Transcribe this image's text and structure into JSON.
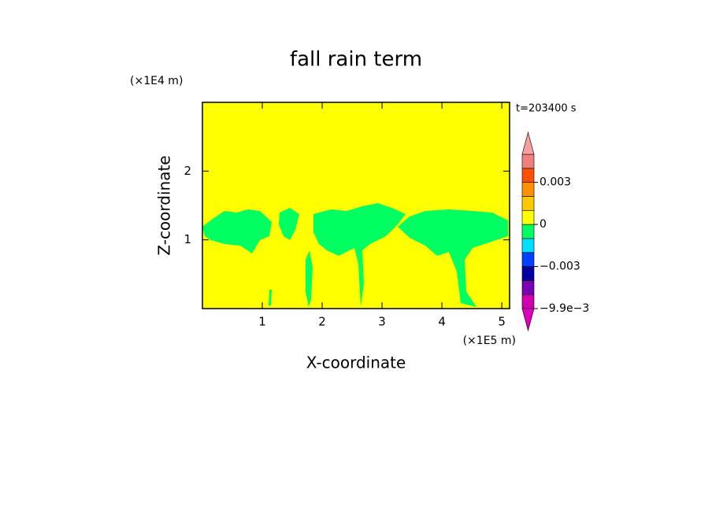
{
  "chart_data": {
    "type": "contour",
    "title": "fall rain term",
    "xlabel": "X-coordinate",
    "ylabel": "Z-coordinate",
    "xunit": "(×1E5 m)",
    "yunit": "(×1E4 m)",
    "annotation": "t=203400 s",
    "xlim": [
      0,
      5.13
    ],
    "ylim": [
      0,
      3
    ],
    "xticks": [
      1,
      2,
      3,
      4,
      5
    ],
    "yticks": [
      1,
      2
    ],
    "background_color": "#ffff00",
    "feature_color": "#00ff60",
    "colorbar": {
      "levels": [
        -0.0099,
        -0.006,
        -0.004,
        -0.003,
        -0.002,
        -0.001,
        0,
        0.001,
        0.002,
        0.003,
        0.004,
        0.006
      ],
      "colors": [
        "#d000b0",
        "#7a00b8",
        "#0000a0",
        "#0040ff",
        "#00e0ff",
        "#00ff60",
        "#ffff00",
        "#ffc800",
        "#ff9000",
        "#ff5000",
        "#f08080"
      ],
      "under_color": "#e000c0",
      "over_color": "#f8a0a0",
      "ticks": [
        {
          "value": 0.003,
          "label": "0.003"
        },
        0,
        {
          "value": -0.003,
          "label": "−0.003"
        },
        {
          "value": -0.0099,
          "label": "−9.9e−3"
        }
      ]
    }
  }
}
